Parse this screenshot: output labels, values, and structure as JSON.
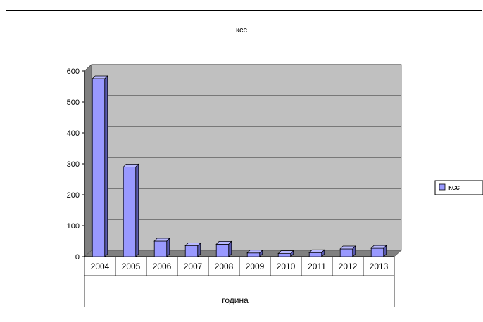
{
  "chart_data": {
    "type": "bar",
    "title": "ксс",
    "xlabel": "година",
    "ylabel": "",
    "categories": [
      "2004",
      "2005",
      "2006",
      "2007",
      "2008",
      "2009",
      "2010",
      "2011",
      "2012",
      "2013"
    ],
    "series": [
      {
        "name": "ксс",
        "values": [
          575,
          290,
          50,
          35,
          40,
          12,
          10,
          13,
          25,
          27
        ]
      }
    ],
    "ylim": [
      0,
      600
    ],
    "yticks": [
      "0",
      "100",
      "200",
      "300",
      "400",
      "500",
      "600"
    ],
    "grid": true,
    "legend": "right",
    "colors": {
      "bar": "#9999ff",
      "plot_wall": "#c0c0c0"
    }
  }
}
